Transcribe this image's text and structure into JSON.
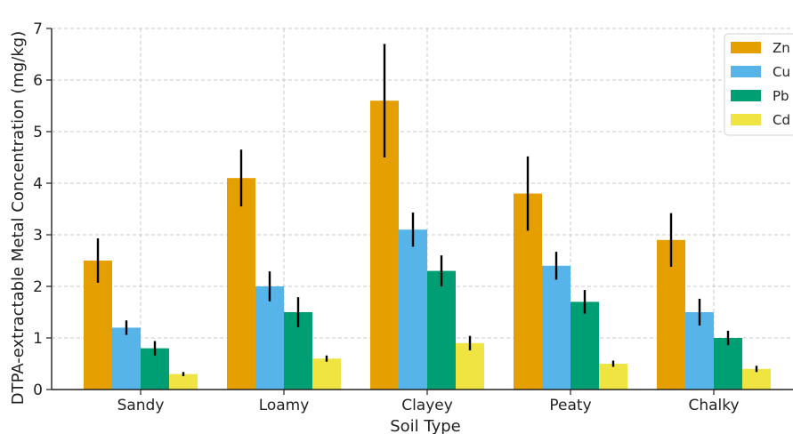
{
  "chart_data": {
    "type": "bar",
    "title": "",
    "xlabel": "Soil Type",
    "ylabel": "DTPA-extractable Metal Concentration (mg/kg)",
    "ylim": [
      0,
      7
    ],
    "yticks": [
      "0",
      "1",
      "2",
      "3",
      "4",
      "5",
      "6",
      "7"
    ],
    "grid": true,
    "legend_position": "top-right",
    "categories": [
      "Sandy",
      "Loamy",
      "Clayey",
      "Peaty",
      "Chalky"
    ],
    "series": [
      {
        "name": "Zn",
        "color": "#E69F00",
        "values": [
          2.5,
          4.1,
          5.6,
          3.8,
          2.9
        ],
        "errors": [
          0.43,
          0.55,
          1.1,
          0.72,
          0.52
        ]
      },
      {
        "name": "Cu",
        "color": "#56B4E9",
        "values": [
          1.2,
          2.0,
          3.1,
          2.4,
          1.5
        ],
        "errors": [
          0.14,
          0.29,
          0.33,
          0.27,
          0.26
        ]
      },
      {
        "name": "Pb",
        "color": "#009E73",
        "values": [
          0.8,
          1.5,
          2.3,
          1.7,
          1.0
        ],
        "errors": [
          0.14,
          0.29,
          0.3,
          0.23,
          0.14
        ]
      },
      {
        "name": "Cd",
        "color": "#F0E442",
        "values": [
          0.3,
          0.6,
          0.9,
          0.5,
          0.4
        ],
        "errors": [
          0.04,
          0.06,
          0.14,
          0.06,
          0.06
        ]
      }
    ]
  }
}
